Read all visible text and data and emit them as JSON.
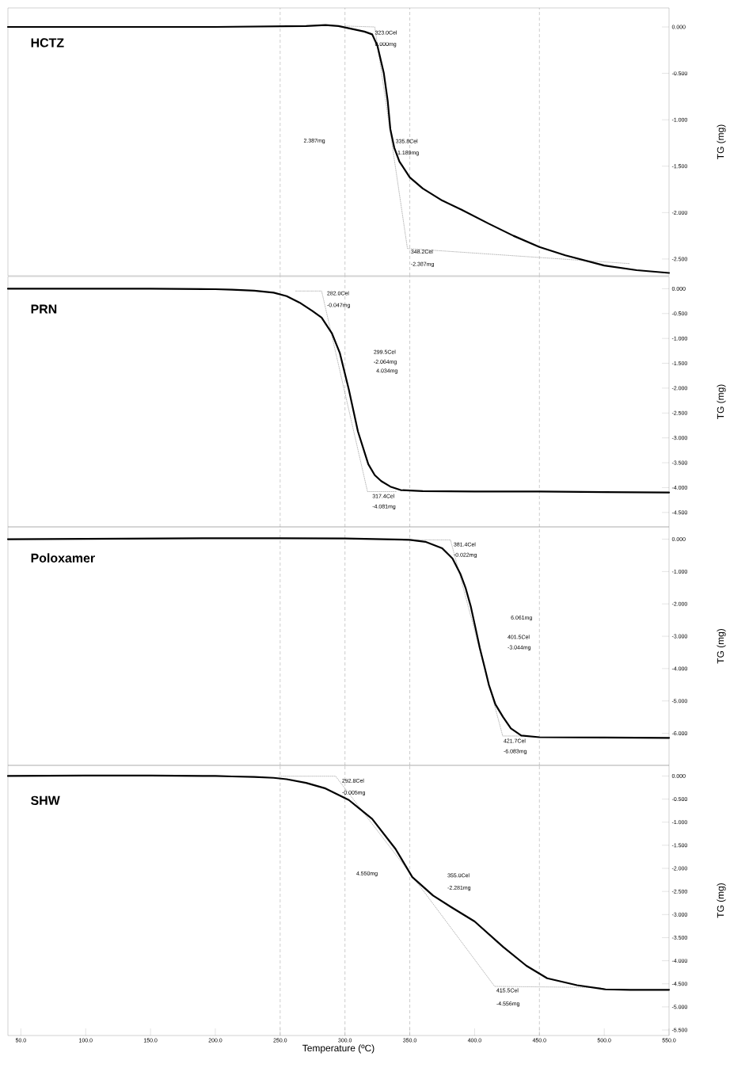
{
  "chart_data": [
    {
      "type": "line",
      "title": "HCTZ",
      "ylabel": "TG (mg)",
      "xlim": [
        40,
        550
      ],
      "ylim": [
        -2.68,
        0.205
      ],
      "tick_labels": "y",
      "yticks": [
        {
          "value": 0,
          "label": "0.000"
        },
        {
          "value": -0.5,
          "label": "-0.500"
        },
        {
          "value": -1,
          "label": "-1.000"
        },
        {
          "value": -1.5,
          "label": "-1.500"
        },
        {
          "value": -2,
          "label": "-2.000"
        },
        {
          "value": -2.5,
          "label": "-2.500"
        }
      ],
      "ref_lines": [
        {
          "axis": "x",
          "value": 250,
          "color": "#9a9a9a",
          "line_style": "dashed"
        },
        {
          "axis": "x",
          "value": 300,
          "color": "#9a9a9a",
          "line_style": "dashed"
        },
        {
          "axis": "x",
          "value": 350,
          "color": "#9a9a9a",
          "line_style": "dashed"
        },
        {
          "axis": "x",
          "value": 450,
          "color": "#9a9a9a",
          "line_style": "dashed"
        }
      ],
      "series": [
        {
          "color": "#000000",
          "line_style": "solid",
          "x": [
            40,
            100,
            200,
            270,
            285,
            295,
            305,
            315,
            321,
            325,
            330,
            333,
            335,
            338,
            342,
            350,
            360,
            375,
            390,
            411,
            430,
            450,
            470,
            500,
            525,
            550
          ],
          "values": [
            0,
            0,
            0,
            0.01,
            0.02,
            0.01,
            -0.02,
            -0.05,
            -0.08,
            -0.2,
            -0.5,
            -0.8,
            -1.1,
            -1.3,
            -1.45,
            -1.62,
            -1.74,
            -1.87,
            -1.97,
            -2.12,
            -2.25,
            -2.37,
            -2.46,
            -2.57,
            -2.62,
            -2.65
          ]
        },
        {
          "color": "#8c8c8c",
          "line_style": "dotted",
          "x": [
            300,
            323.0,
            348.2,
            520
          ],
          "values": [
            0.01,
            0.0,
            -2.387,
            -2.55
          ]
        }
      ],
      "annotations": [
        "323.0Cel",
        "0.000mg",
        "2.387mg",
        "335.8Cel",
        "-1.189mg",
        "348.2Cel",
        "-2.387mg"
      ]
    },
    {
      "type": "line",
      "title": "PRN",
      "ylabel": "TG (mg)",
      "xlim": [
        40,
        550
      ],
      "ylim": [
        -4.79,
        0.245
      ],
      "tick_labels": "y",
      "yticks": [
        {
          "value": 0,
          "label": "0.000"
        },
        {
          "value": -0.5,
          "label": "-0.500"
        },
        {
          "value": -1,
          "label": "-1.000"
        },
        {
          "value": -1.5,
          "label": "-1.500"
        },
        {
          "value": -2,
          "label": "-2.000"
        },
        {
          "value": -2.5,
          "label": "-2.500"
        },
        {
          "value": -3,
          "label": "-3.000"
        },
        {
          "value": -3.5,
          "label": "-3.500"
        },
        {
          "value": -4,
          "label": "-4.000"
        },
        {
          "value": -4.5,
          "label": "-4.500"
        }
      ],
      "ref_lines": [
        {
          "axis": "x",
          "value": 250,
          "color": "#9a9a9a",
          "line_style": "dashed"
        },
        {
          "axis": "x",
          "value": 300,
          "color": "#9a9a9a",
          "line_style": "dashed"
        },
        {
          "axis": "x",
          "value": 350,
          "color": "#9a9a9a",
          "line_style": "dashed"
        },
        {
          "axis": "x",
          "value": 450,
          "color": "#9a9a9a",
          "line_style": "dashed"
        }
      ],
      "series": [
        {
          "color": "#000000",
          "line_style": "solid",
          "x": [
            40,
            100,
            150,
            200,
            213,
            230,
            245,
            255,
            265,
            275,
            282,
            290,
            296,
            303,
            310,
            318,
            323,
            328,
            335,
            343,
            360,
            400,
            450,
            500,
            550
          ],
          "values": [
            0,
            0,
            0,
            -0.01,
            -0.02,
            -0.04,
            -0.08,
            -0.15,
            -0.28,
            -0.45,
            -0.58,
            -0.9,
            -1.29,
            -2.03,
            -2.87,
            -3.53,
            -3.75,
            -3.87,
            -3.98,
            -4.05,
            -4.07,
            -4.08,
            -4.08,
            -4.09,
            -4.1
          ]
        },
        {
          "color": "#8c8c8c",
          "line_style": "dotted",
          "x": [
            262,
            282.0,
            317.4,
            340
          ],
          "values": [
            -0.047,
            -0.047,
            -4.081,
            -4.081
          ]
        }
      ],
      "annotations": [
        "282.0Cel",
        "-0.047mg",
        "299.5Cel",
        "-2.064mg",
        "4.034mg",
        "317.4Cel",
        "-4.081mg"
      ]
    },
    {
      "type": "line",
      "title": "Poloxamer",
      "ylabel": "TG (mg)",
      "xlim": [
        40,
        550
      ],
      "ylim": [
        -6.99,
        0.38
      ],
      "tick_labels": "y",
      "yticks": [
        {
          "value": 0,
          "label": "0.000"
        },
        {
          "value": -1,
          "label": "-1.000"
        },
        {
          "value": -2,
          "label": "-2.000"
        },
        {
          "value": -3,
          "label": "-3.000"
        },
        {
          "value": -4,
          "label": "-4.000"
        },
        {
          "value": -5,
          "label": "-5.000"
        },
        {
          "value": -6,
          "label": "-6.000"
        }
      ],
      "ref_lines": [
        {
          "axis": "x",
          "value": 250,
          "color": "#9a9a9a",
          "line_style": "dashed"
        },
        {
          "axis": "x",
          "value": 300,
          "color": "#9a9a9a",
          "line_style": "dashed"
        },
        {
          "axis": "x",
          "value": 350,
          "color": "#9a9a9a",
          "line_style": "dashed"
        },
        {
          "axis": "x",
          "value": 450,
          "color": "#9a9a9a",
          "line_style": "dashed"
        }
      ],
      "series": [
        {
          "color": "#000000",
          "line_style": "solid",
          "x": [
            40,
            100,
            200,
            250,
            300,
            330,
            350,
            362,
            375,
            383,
            389,
            393,
            397,
            401,
            404,
            408,
            411,
            416,
            422,
            428,
            436,
            450,
            500,
            550
          ],
          "values": [
            0,
            0.01,
            0.03,
            0.03,
            0.02,
            0.0,
            -0.02,
            -0.08,
            -0.28,
            -0.6,
            -1.07,
            -1.5,
            -2.07,
            -2.8,
            -3.36,
            -4.0,
            -4.5,
            -5.1,
            -5.5,
            -5.85,
            -6.07,
            -6.12,
            -6.13,
            -6.14
          ]
        },
        {
          "color": "#8c8c8c",
          "line_style": "dotted",
          "x": [
            350,
            381.4,
            421.7,
            436
          ],
          "values": [
            -0.022,
            -0.022,
            -6.083,
            -6.083
          ]
        }
      ],
      "annotations": [
        "381.4Cel",
        "-0.022mg",
        "6.061mg",
        "401.5Cel",
        "-3.044mg",
        "421.7Cel",
        "-6.083mg"
      ]
    },
    {
      "type": "line",
      "title": "SHW",
      "xlabel": "Temperature (ºC)",
      "ylabel": "TG (mg)",
      "xlim": [
        40,
        550
      ],
      "ylim": [
        -5.62,
        0.23
      ],
      "xticks": [
        {
          "value": 50,
          "label": "50.0"
        },
        {
          "value": 100,
          "label": "100.0"
        },
        {
          "value": 150,
          "label": "150.0"
        },
        {
          "value": 200,
          "label": "200.0"
        },
        {
          "value": 250,
          "label": "250.0"
        },
        {
          "value": 300,
          "label": "300.0"
        },
        {
          "value": 350,
          "label": "350.0"
        },
        {
          "value": 400,
          "label": "400.0"
        },
        {
          "value": 450,
          "label": "450.0"
        },
        {
          "value": 500,
          "label": "500.0"
        },
        {
          "value": 550,
          "label": "550.0"
        }
      ],
      "yticks": [
        {
          "value": 0,
          "label": "0.000"
        },
        {
          "value": -0.5,
          "label": "-0.500"
        },
        {
          "value": -1,
          "label": "-1.000"
        },
        {
          "value": -1.5,
          "label": "-1.500"
        },
        {
          "value": -2,
          "label": "-2.000"
        },
        {
          "value": -2.5,
          "label": "-2.500"
        },
        {
          "value": -3,
          "label": "-3.000"
        },
        {
          "value": -3.5,
          "label": "-3.500"
        },
        {
          "value": -4,
          "label": "-4.000"
        },
        {
          "value": -4.5,
          "label": "-4.500"
        },
        {
          "value": -5,
          "label": "-5.000"
        },
        {
          "value": -5.5,
          "label": "-5.500"
        }
      ],
      "ref_lines": [
        {
          "axis": "x",
          "value": 250,
          "color": "#9a9a9a",
          "line_style": "dashed"
        },
        {
          "axis": "x",
          "value": 300,
          "color": "#9a9a9a",
          "line_style": "dashed"
        },
        {
          "axis": "x",
          "value": 350,
          "color": "#9a9a9a",
          "line_style": "dashed"
        },
        {
          "axis": "x",
          "value": 450,
          "color": "#9a9a9a",
          "line_style": "dashed"
        }
      ],
      "series": [
        {
          "color": "#000000",
          "line_style": "solid",
          "x": [
            40,
            100,
            150,
            200,
            213,
            230,
            245,
            255,
            270,
            285,
            303,
            321,
            339,
            352,
            368,
            382,
            400,
            422,
            440,
            456,
            479,
            501,
            520,
            550
          ],
          "values": [
            0,
            0.01,
            0.01,
            0.0,
            -0.01,
            -0.02,
            -0.04,
            -0.07,
            -0.15,
            -0.27,
            -0.52,
            -0.93,
            -1.58,
            -2.19,
            -2.59,
            -2.84,
            -3.15,
            -3.7,
            -4.11,
            -4.38,
            -4.53,
            -4.62,
            -4.63,
            -4.63
          ]
        },
        {
          "color": "#8c8c8c",
          "line_style": "dotted",
          "x": [
            249,
            292.8,
            355.0,
            415.5,
            497
          ],
          "values": [
            -0.005,
            -0.005,
            -2.281,
            -4.556,
            -4.58
          ]
        }
      ],
      "annotations": [
        "292.8Cel",
        "-0.005mg",
        "4.550mg",
        "355.0Cel",
        "-2.281mg",
        "415.5Cel",
        "-4.556mg"
      ]
    }
  ]
}
